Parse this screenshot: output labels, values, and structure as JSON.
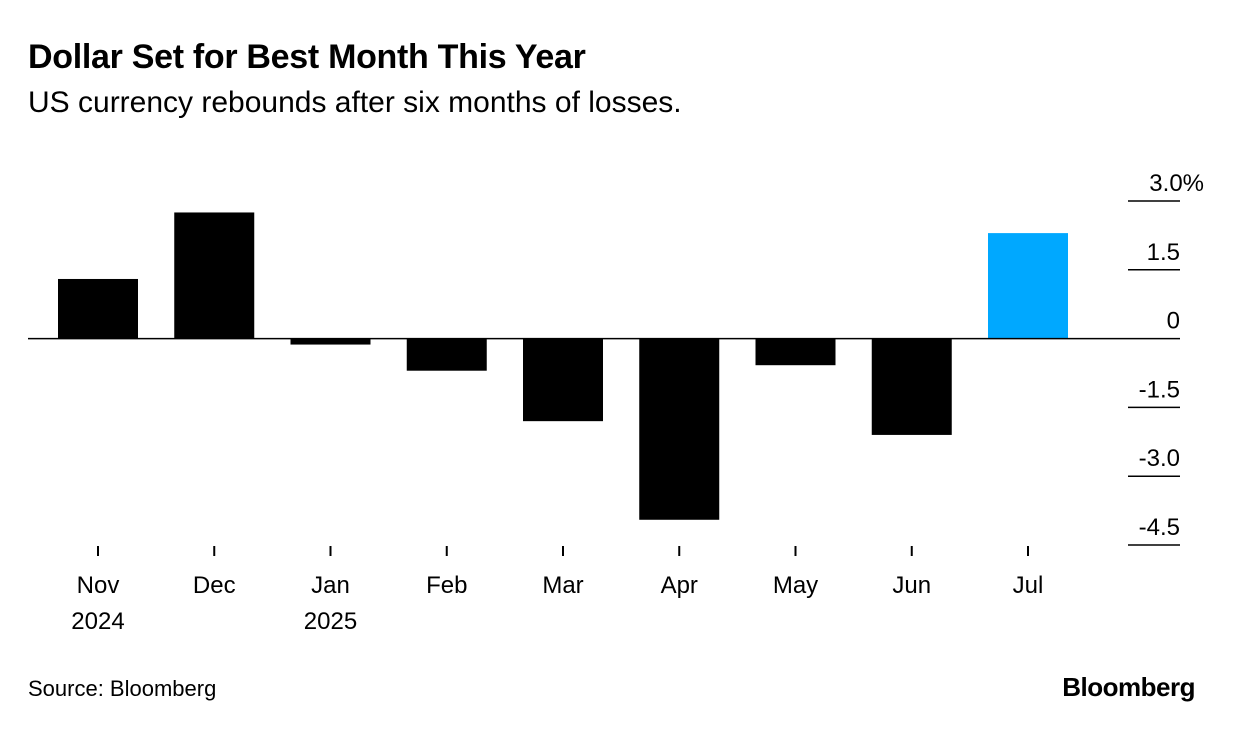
{
  "title": "Dollar Set for Best Month This Year",
  "subtitle": "US currency rebounds after six months of losses.",
  "source": "Source: Bloomberg",
  "brand": "Bloomberg",
  "colors": {
    "bar": "#000000",
    "highlight": "#00a8ff",
    "axis": "#000000"
  },
  "chart_data": {
    "type": "bar",
    "categories": [
      "Nov",
      "Dec",
      "Jan",
      "Feb",
      "Mar",
      "Apr",
      "May",
      "Jun",
      "Jul"
    ],
    "category_sublabels": [
      "2024",
      "",
      "2025",
      "",
      "",
      "",
      "",
      "",
      ""
    ],
    "values": [
      1.3,
      2.75,
      -0.13,
      -0.7,
      -1.8,
      -3.95,
      -0.58,
      -2.1,
      2.3
    ],
    "highlight_index": 8,
    "ylim": [
      -4.5,
      3.0
    ],
    "y_ticks": [
      3.0,
      1.5,
      0,
      -1.5,
      -3.0,
      -4.5
    ],
    "y_tick_labels": [
      "3.0%",
      "1.5",
      "0",
      "-1.5",
      "-3.0",
      "-4.5"
    ],
    "y_axis_side": "right",
    "title": "Dollar Set for Best Month This Year",
    "xlabel": "",
    "ylabel": ""
  }
}
